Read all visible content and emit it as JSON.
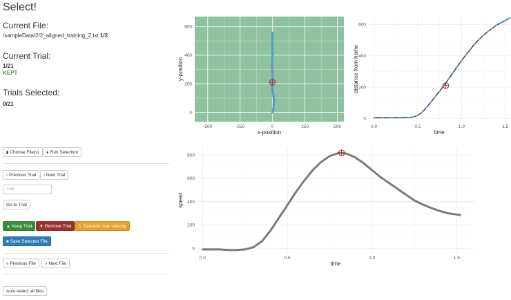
{
  "page_title": "Select!",
  "current_file": {
    "label": "Current File:",
    "path_prefix": "/sampleData/2/2_aligned_training_2.txt ",
    "count": "1/2"
  },
  "current_trial": {
    "label": "Current Trial:",
    "count": "1/21",
    "status": "KEPT",
    "status_color": "#3a9a3a"
  },
  "trials_selected": {
    "label": "Trials Selected:",
    "count": "0/21"
  },
  "buttons": {
    "choose_files": "Choose File(s)",
    "run_selection": "Run Selection",
    "previous_trial": "Previous Trial",
    "next_trial": "Next Trial",
    "go_to_trial": "Go to Trial",
    "keep_trial": "Keep Trial",
    "remove_trial": "Remove Trial",
    "override_max_velocity": "Override max velocity",
    "save_selected_file": "Save Selected File",
    "previous_file": "Previous File",
    "next_file": "Next File",
    "auto_select_all": "Auto-select all files"
  },
  "trial_input": {
    "placeholder": "Trial"
  },
  "colors": {
    "keep": "#3b8c3b",
    "remove": "#9b3232",
    "override": "#e3a132",
    "save": "#3279b7",
    "plot_bg": "#8fc29f",
    "trace": "#4a90d0",
    "speed_line": "#7a7a7a",
    "marker": "#b03030"
  },
  "chart_data": [
    {
      "type": "scatter",
      "xlabel": "x-position",
      "ylabel": "y-position",
      "xlim": [
        -600,
        550
      ],
      "ylim": [
        -65,
        670
      ],
      "x_ticks": [
        -500,
        -250,
        0,
        250,
        500
      ],
      "y_ticks": [
        0,
        200,
        400,
        600
      ],
      "grid": true,
      "points": [
        [
          0,
          0
        ],
        [
          3,
          12
        ],
        [
          6,
          25
        ],
        [
          8,
          40
        ],
        [
          9,
          55
        ],
        [
          10,
          70
        ],
        [
          10,
          85
        ],
        [
          9,
          100
        ],
        [
          7,
          115
        ],
        [
          4,
          130
        ],
        [
          1,
          145
        ],
        [
          -1,
          160
        ],
        [
          -2,
          175
        ],
        [
          -2,
          190
        ],
        [
          -1,
          205
        ],
        [
          0,
          220
        ],
        [
          1,
          235
        ],
        [
          1,
          250
        ],
        [
          0,
          265
        ],
        [
          -1,
          280
        ],
        [
          -2,
          295
        ],
        [
          -3,
          310
        ],
        [
          -3,
          325
        ],
        [
          -3,
          340
        ],
        [
          -3,
          355
        ],
        [
          -2,
          370
        ],
        [
          -2,
          385
        ],
        [
          -1,
          400
        ],
        [
          -1,
          415
        ],
        [
          -1,
          430
        ],
        [
          -1,
          445
        ],
        [
          -1,
          460
        ],
        [
          -1,
          475
        ],
        [
          -1,
          490
        ],
        [
          -1,
          505
        ],
        [
          -1,
          520
        ],
        [
          -1,
          535
        ],
        [
          -1,
          545
        ],
        [
          -1,
          555
        ]
      ],
      "marker": [
        -1,
        210
      ]
    },
    {
      "type": "line",
      "xlabel": "time",
      "ylabel": "distance from home",
      "xlim": [
        -0.06,
        1.55
      ],
      "ylim": [
        -20,
        650
      ],
      "x_ticks": [
        0.0,
        0.5,
        1.0,
        1.5
      ],
      "x_tick_labels": [
        "0.0",
        "0.5",
        "1.0",
        "1.5"
      ],
      "y_ticks": [
        0,
        200,
        400,
        600
      ],
      "grid": true,
      "x": [
        0.0,
        0.1,
        0.2,
        0.3,
        0.4,
        0.45,
        0.5,
        0.55,
        0.6,
        0.65,
        0.7,
        0.75,
        0.8,
        0.85,
        0.9,
        0.95,
        1.0,
        1.05,
        1.1,
        1.15,
        1.2,
        1.25,
        1.3,
        1.35,
        1.4,
        1.45,
        1.5,
        1.55
      ],
      "y": [
        5,
        5,
        5,
        5,
        6,
        10,
        20,
        40,
        70,
        105,
        140,
        175,
        210,
        250,
        290,
        330,
        370,
        405,
        440,
        475,
        505,
        530,
        555,
        575,
        595,
        610,
        625,
        640
      ],
      "marker": [
        0.82,
        210
      ]
    },
    {
      "type": "line",
      "xlabel": "time",
      "ylabel": "speed",
      "xlim": [
        -0.03,
        1.6
      ],
      "ylim": [
        -40,
        860
      ],
      "x_ticks": [
        0.0,
        0.5,
        1.0,
        1.5
      ],
      "x_tick_labels": [
        "0.0",
        "0.5",
        "1.0",
        "1.5"
      ],
      "y_ticks": [
        0,
        200,
        400,
        600,
        800
      ],
      "grid": true,
      "x": [
        0.0,
        0.1,
        0.15,
        0.2,
        0.25,
        0.3,
        0.35,
        0.4,
        0.45,
        0.5,
        0.55,
        0.6,
        0.65,
        0.7,
        0.75,
        0.8,
        0.82,
        0.85,
        0.9,
        0.95,
        1.0,
        1.05,
        1.1,
        1.15,
        1.2,
        1.25,
        1.3,
        1.35,
        1.4,
        1.45,
        1.5,
        1.52
      ],
      "y": [
        -10,
        -10,
        -15,
        -15,
        -10,
        10,
        60,
        150,
        260,
        370,
        480,
        580,
        670,
        740,
        790,
        815,
        818,
        810,
        780,
        730,
        670,
        610,
        560,
        510,
        460,
        410,
        375,
        345,
        320,
        300,
        290,
        285
      ],
      "marker": [
        0.82,
        818
      ]
    }
  ]
}
